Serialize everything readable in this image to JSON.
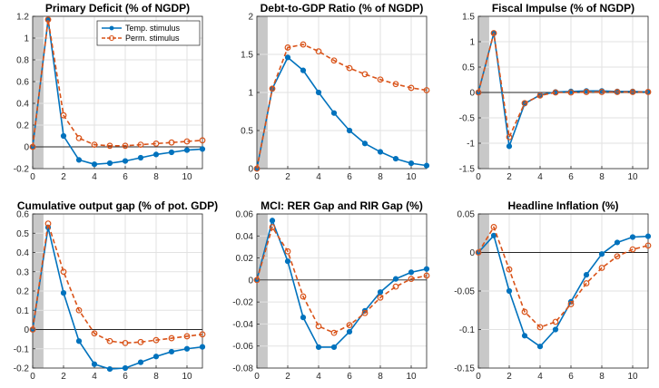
{
  "figure": {
    "legend": {
      "temp_label": "Temp. stimulus",
      "perm_label": "Perm. stimulus"
    },
    "colors": {
      "temp": "#0072BD",
      "perm": "#D95319",
      "grid": "#e2e2e2",
      "shade": "#c8c8c8",
      "axis": "#262626",
      "zero": "#262626"
    }
  },
  "chart_data": [
    {
      "type": "line",
      "title": "Primary Deficit (% of NGDP)",
      "xlim": [
        0,
        11
      ],
      "ylim": [
        -0.2,
        1.2
      ],
      "xticks": [
        0,
        2,
        4,
        6,
        8,
        10
      ],
      "yticks": [
        -0.2,
        0,
        0.2,
        0.4,
        0.6,
        0.8,
        1,
        1.2
      ],
      "ytick_labels": [
        "-0.2",
        "0",
        "0.2",
        "0.4",
        "0.6",
        "0.8",
        "1",
        "1.2"
      ],
      "x": [
        0,
        1,
        2,
        3,
        4,
        5,
        6,
        7,
        8,
        9,
        10,
        11
      ],
      "series": [
        {
          "name": "Temp. stimulus",
          "values": [
            0,
            1.17,
            0.1,
            -0.12,
            -0.16,
            -0.15,
            -0.13,
            -0.1,
            -0.07,
            -0.05,
            -0.03,
            -0.02
          ]
        },
        {
          "name": "Perm. stimulus",
          "values": [
            0,
            1.17,
            0.29,
            0.08,
            0.02,
            0.01,
            0.01,
            0.02,
            0.03,
            0.04,
            0.05,
            0.06
          ]
        }
      ],
      "grid": true,
      "legend_position": "top-right"
    },
    {
      "type": "line",
      "title": "Debt-to-GDP Ratio (% of NGDP)",
      "xlim": [
        0,
        11
      ],
      "ylim": [
        0,
        2
      ],
      "xticks": [
        0,
        2,
        4,
        6,
        8,
        10
      ],
      "yticks": [
        0,
        0.5,
        1,
        1.5,
        2
      ],
      "ytick_labels": [
        "0",
        "0.5",
        "1",
        "1.5",
        "2"
      ],
      "x": [
        0,
        1,
        2,
        3,
        4,
        5,
        6,
        7,
        8,
        9,
        10,
        11
      ],
      "series": [
        {
          "name": "Temp. stimulus",
          "values": [
            0,
            1.05,
            1.46,
            1.29,
            1.0,
            0.73,
            0.5,
            0.33,
            0.22,
            0.13,
            0.07,
            0.04
          ]
        },
        {
          "name": "Perm. stimulus",
          "values": [
            0,
            1.05,
            1.59,
            1.63,
            1.54,
            1.42,
            1.32,
            1.24,
            1.17,
            1.11,
            1.06,
            1.03
          ]
        }
      ],
      "grid": true
    },
    {
      "type": "line",
      "title": "Fiscal Impulse (% of NGDP)",
      "xlim": [
        0,
        11
      ],
      "ylim": [
        -1.5,
        1.5
      ],
      "xticks": [
        0,
        2,
        4,
        6,
        8,
        10
      ],
      "yticks": [
        -1.5,
        -1,
        -0.5,
        0,
        0.5,
        1,
        1.5
      ],
      "ytick_labels": [
        "-1.5",
        "-1",
        "-0.5",
        "0",
        "0.5",
        "1",
        "1.5"
      ],
      "x": [
        0,
        1,
        2,
        3,
        4,
        5,
        6,
        7,
        8,
        9,
        10,
        11
      ],
      "series": [
        {
          "name": "Temp. stimulus",
          "values": [
            0,
            1.17,
            -1.06,
            -0.22,
            -0.05,
            0.01,
            0.02,
            0.03,
            0.03,
            0.02,
            0.02,
            0.01
          ]
        },
        {
          "name": "Perm. stimulus",
          "values": [
            0,
            1.17,
            -0.88,
            -0.21,
            -0.06,
            0,
            0,
            0.01,
            0.01,
            0.01,
            0.01,
            0.01
          ]
        }
      ],
      "grid": true
    },
    {
      "type": "line",
      "title": "Cumulative output gap (% of pot. GDP)",
      "xlim": [
        0,
        11
      ],
      "ylim": [
        -0.2,
        0.6
      ],
      "xticks": [
        0,
        2,
        4,
        6,
        8,
        10
      ],
      "yticks": [
        -0.2,
        -0.1,
        0,
        0.1,
        0.2,
        0.3,
        0.4,
        0.5,
        0.6
      ],
      "ytick_labels": [
        "-0.2",
        "-0.1",
        "0",
        "0.1",
        "0.2",
        "0.3",
        "0.4",
        "0.5",
        "0.6"
      ],
      "x": [
        0,
        1,
        2,
        3,
        4,
        5,
        6,
        7,
        8,
        9,
        10,
        11
      ],
      "series": [
        {
          "name": "Temp. stimulus",
          "values": [
            0,
            0.53,
            0.19,
            -0.06,
            -0.18,
            -0.205,
            -0.2,
            -0.17,
            -0.14,
            -0.115,
            -0.1,
            -0.09
          ]
        },
        {
          "name": "Perm. stimulus",
          "values": [
            0,
            0.55,
            0.3,
            0.1,
            -0.02,
            -0.06,
            -0.07,
            -0.065,
            -0.055,
            -0.045,
            -0.035,
            -0.025
          ]
        }
      ],
      "grid": true
    },
    {
      "type": "line",
      "title": "MCI: RER Gap and RIR Gap (%)",
      "xlim": [
        0,
        11
      ],
      "ylim": [
        -0.08,
        0.06
      ],
      "xticks": [
        0,
        2,
        4,
        6,
        8,
        10
      ],
      "yticks": [
        -0.08,
        -0.06,
        -0.04,
        -0.02,
        0,
        0.02,
        0.04,
        0.06
      ],
      "ytick_labels": [
        "-0.08",
        "-0.06",
        "-0.04",
        "-0.02",
        "0",
        "0.02",
        "0.04",
        "0.06"
      ],
      "x": [
        0,
        1,
        2,
        3,
        4,
        5,
        6,
        7,
        8,
        9,
        10,
        11
      ],
      "series": [
        {
          "name": "Temp. stimulus",
          "values": [
            0,
            0.054,
            0.017,
            -0.034,
            -0.061,
            -0.061,
            -0.047,
            -0.028,
            -0.011,
            0.001,
            0.007,
            0.01
          ]
        },
        {
          "name": "Perm. stimulus",
          "values": [
            0,
            0.048,
            0.026,
            -0.015,
            -0.042,
            -0.048,
            -0.041,
            -0.03,
            -0.016,
            -0.006,
            0.001,
            0.004
          ]
        }
      ],
      "grid": true
    },
    {
      "type": "line",
      "title": "Headline Inflation (%)",
      "xlim": [
        0,
        11
      ],
      "ylim": [
        -0.15,
        0.05
      ],
      "xticks": [
        0,
        2,
        4,
        6,
        8,
        10
      ],
      "yticks": [
        -0.15,
        -0.1,
        -0.05,
        0,
        0.05
      ],
      "ytick_labels": [
        "-0.15",
        "-0.1",
        "-0.05",
        "0",
        "0.05"
      ],
      "x": [
        0,
        1,
        2,
        3,
        4,
        5,
        6,
        7,
        8,
        9,
        10,
        11
      ],
      "series": [
        {
          "name": "Temp. stimulus",
          "values": [
            0,
            0.022,
            -0.05,
            -0.108,
            -0.122,
            -0.1,
            -0.064,
            -0.029,
            -0.002,
            0.013,
            0.02,
            0.021
          ]
        },
        {
          "name": "Perm. stimulus",
          "values": [
            0,
            0.033,
            -0.022,
            -0.077,
            -0.097,
            -0.09,
            -0.067,
            -0.04,
            -0.02,
            -0.005,
            0.004,
            0.009
          ]
        }
      ],
      "grid": true
    }
  ]
}
